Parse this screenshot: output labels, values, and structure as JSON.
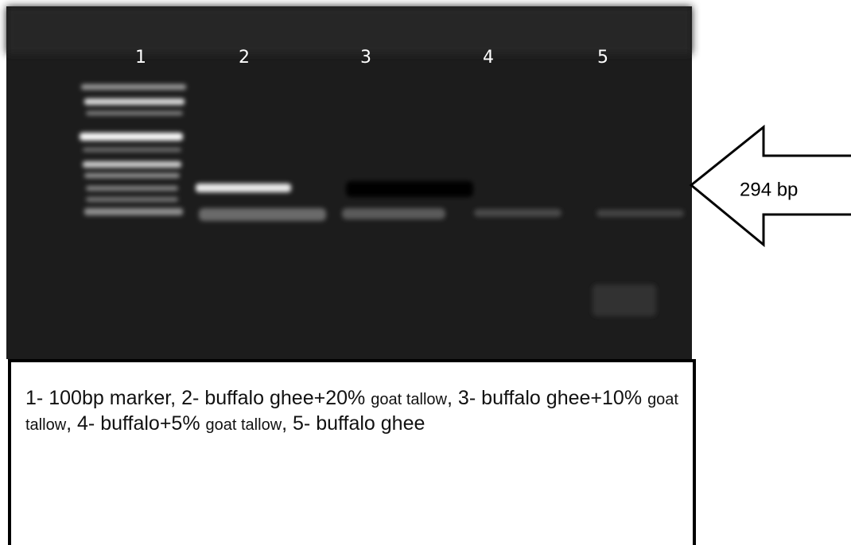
{
  "gel": {
    "lanes": [
      "1",
      "2",
      "3",
      "4",
      "5"
    ],
    "band_label": "294 bp"
  },
  "caption": {
    "runs": [
      "1- 100bp marker, 2- buffalo ghee+20%",
      "goat tallow",
      ", 3- buffalo ghee+10%",
      "goat tallow",
      ", 4- buffalo+5%",
      "goat tallow",
      ", 5- buffalo ghee"
    ]
  }
}
